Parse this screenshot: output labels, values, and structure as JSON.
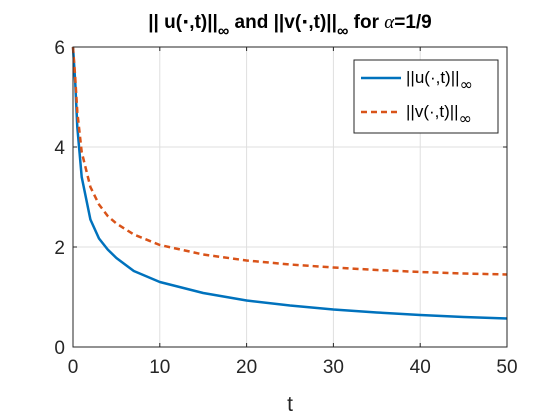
{
  "chart_data": {
    "type": "line",
    "title": {
      "part1": "|| u(",
      "part2": ",t)||",
      "sub1": "∞",
      "part3": " and ||v(",
      "part4": ",t)||",
      "sub2": "∞",
      "part5": " for ",
      "alpha": "α",
      "part6": "=1/9"
    },
    "xlabel": "t",
    "ylabel": "",
    "xlim": [
      0,
      50
    ],
    "ylim": [
      0,
      6
    ],
    "xticks": [
      "0",
      "10",
      "20",
      "30",
      "40",
      "50"
    ],
    "yticks": [
      "0",
      "2",
      "4",
      "6"
    ],
    "grid": true,
    "legend_position": "top-right",
    "series": [
      {
        "name": {
          "main": "||u(·,t)||",
          "sub": "∞"
        },
        "color": "#0072BD",
        "style": "solid",
        "x": [
          0,
          0.25,
          0.5,
          1,
          2,
          3,
          4,
          5,
          7,
          10,
          15,
          20,
          25,
          30,
          35,
          40,
          45,
          50
        ],
        "y": [
          6.0,
          5.3,
          4.4,
          3.4,
          2.55,
          2.17,
          1.95,
          1.78,
          1.52,
          1.3,
          1.08,
          0.93,
          0.83,
          0.75,
          0.69,
          0.64,
          0.6,
          0.57
        ]
      },
      {
        "name": {
          "main": "||v(·,t)||",
          "sub": "∞"
        },
        "color": "#D95319",
        "style": "dashed",
        "x": [
          0,
          0.25,
          0.5,
          1,
          2,
          3,
          4,
          5,
          7,
          10,
          15,
          20,
          25,
          30,
          35,
          40,
          45,
          50
        ],
        "y": [
          6.0,
          5.4,
          4.7,
          3.9,
          3.2,
          2.85,
          2.62,
          2.47,
          2.25,
          2.04,
          1.85,
          1.73,
          1.65,
          1.59,
          1.54,
          1.5,
          1.47,
          1.45
        ]
      }
    ]
  }
}
